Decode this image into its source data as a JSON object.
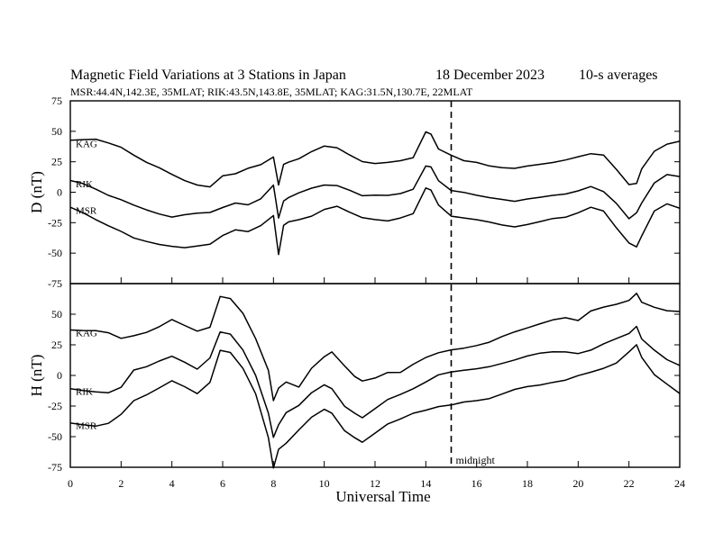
{
  "chart_data": {
    "type": "line",
    "title_left": "Magnetic Field Variations at 3 Stations in Japan",
    "title_date": "18 December",
    "title_year": "2023",
    "title_right": "10-s averages",
    "subtitle": "MSR:44.4N,142.3E, 35MLAT;  RIK:43.5N,143.8E, 35MLAT;  KAG:31.5N,130.7E, 22MLAT",
    "xlabel": "Universal Time",
    "xlim": [
      0,
      24
    ],
    "x_ticks": [
      "0",
      "2",
      "4",
      "6",
      "8",
      "10",
      "12",
      "14",
      "16",
      "18",
      "20",
      "22",
      "24"
    ],
    "midnight": {
      "x": 15,
      "label": "midnight"
    },
    "panels": [
      {
        "ylabel": "D (nT)",
        "ylim": [
          -75,
          75
        ],
        "y_ticks": [
          "75",
          "50",
          "25",
          "0",
          "-25",
          "-50",
          "-75"
        ],
        "series": [
          {
            "name": "KAG",
            "x": [
              0,
              0.5,
              1,
              1.5,
              2,
              2.5,
              3,
              3.5,
              4,
              4.5,
              5,
              5.5,
              6,
              6.5,
              7,
              7.5,
              8,
              8.2,
              8.4,
              8.6,
              9,
              9.5,
              10,
              10.5,
              11,
              11.5,
              12,
              12.5,
              13,
              13.5,
              14,
              14.2,
              14.5,
              15,
              15.5,
              16,
              16.5,
              17,
              17.5,
              18,
              18.5,
              19,
              19.5,
              20,
              20.5,
              21,
              21.5,
              22,
              22.3,
              22.5,
              23,
              23.5,
              24
            ],
            "y": [
              43,
              44,
              44,
              40,
              36,
              30,
              25,
              21,
              15,
              9,
              5,
              4,
              14,
              16,
              20,
              22,
              28,
              5,
              22,
              24,
              28,
              33,
              37,
              36,
              31,
              26,
              24,
              24,
              25,
              28,
              50,
              48,
              36,
              30,
              25,
              24,
              22,
              21,
              20,
              21,
              22,
              24,
              27,
              30,
              32,
              30,
              18,
              6,
              8,
              20,
              34,
              39,
              41
            ]
          },
          {
            "name": "RIK",
            "x": [
              0,
              0.5,
              1,
              1.5,
              2,
              2.5,
              3,
              3.5,
              4,
              4.5,
              5,
              5.5,
              6,
              6.5,
              7,
              7.5,
              8,
              8.2,
              8.4,
              8.6,
              9,
              9.5,
              10,
              10.5,
              11,
              11.5,
              12,
              12.5,
              13,
              13.5,
              14,
              14.2,
              14.5,
              15,
              15.5,
              16,
              16.5,
              17,
              17.5,
              18,
              18.5,
              19,
              19.5,
              20,
              20.5,
              21,
              21.5,
              22,
              22.3,
              22.5,
              23,
              23.5,
              24
            ],
            "y": [
              10,
              8,
              3,
              -3,
              -7,
              -11,
              -14,
              -17,
              -20,
              -19,
              -18,
              -17,
              -12,
              -8,
              -10,
              -6,
              5,
              -22,
              -8,
              -5,
              0,
              3,
              5,
              5,
              2,
              -2,
              -2,
              -3,
              -2,
              2,
              22,
              21,
              10,
              1,
              -1,
              -3,
              -4,
              -5,
              -7,
              -6,
              -5,
              -3,
              -1,
              2,
              5,
              0,
              -10,
              -22,
              -16,
              -8,
              8,
              14,
              12
            ]
          },
          {
            "name": "MSR",
            "x": [
              0,
              0.5,
              1,
              1.5,
              2,
              2.5,
              3,
              3.5,
              4,
              4.5,
              5,
              5.5,
              6,
              6.5,
              7,
              7.5,
              8,
              8.2,
              8.4,
              8.6,
              9,
              9.5,
              10,
              10.5,
              11,
              11.5,
              12,
              12.5,
              13,
              13.5,
              14,
              14.2,
              14.5,
              15,
              15.5,
              16,
              16.5,
              17,
              17.5,
              18,
              18.5,
              19,
              19.5,
              20,
              20.5,
              21,
              21.5,
              22,
              22.3,
              22.5,
              23,
              23.5,
              24
            ],
            "y": [
              -12,
              -16,
              -22,
              -28,
              -33,
              -38,
              -40,
              -42,
              -44,
              -46,
              -45,
              -43,
              -35,
              -30,
              -32,
              -28,
              -20,
              -52,
              -28,
              -25,
              -22,
              -20,
              -15,
              -12,
              -16,
              -20,
              -22,
              -24,
              -22,
              -18,
              4,
              2,
              -10,
              -20,
              -22,
              -23,
              -24,
              -26,
              -28,
              -27,
              -25,
              -22,
              -20,
              -16,
              -12,
              -16,
              -30,
              -42,
              -44,
              -35,
              -15,
              -10,
              -14
            ]
          }
        ]
      },
      {
        "ylabel": "H (nT)",
        "ylim": [
          -75,
          75
        ],
        "y_ticks": [
          "75",
          "50",
          "25",
          "0",
          "-25",
          "-50",
          "-75"
        ],
        "series": [
          {
            "name": "KAG",
            "x": [
              0,
              0.5,
              1,
              1.5,
              2,
              2.5,
              3,
              3.5,
              4,
              4.5,
              5,
              5.5,
              5.9,
              6.3,
              6.8,
              7.3,
              7.8,
              8,
              8.2,
              8.5,
              9,
              9.5,
              10,
              10.3,
              10.8,
              11.2,
              11.5,
              12,
              12.5,
              13,
              13.5,
              14,
              14.5,
              15,
              15.5,
              16,
              16.5,
              17,
              17.5,
              18,
              18.5,
              19,
              19.5,
              20,
              20.5,
              21,
              21.5,
              22,
              22.3,
              22.5,
              23,
              23.5,
              24
            ],
            "y": [
              38,
              37,
              36,
              34,
              30,
              33,
              36,
              40,
              45,
              40,
              36,
              40,
              64,
              62,
              50,
              30,
              5,
              -20,
              -10,
              -5,
              -10,
              5,
              15,
              20,
              8,
              0,
              -5,
              -3,
              2,
              3,
              10,
              15,
              18,
              20,
              22,
              25,
              28,
              32,
              35,
              38,
              42,
              46,
              48,
              45,
              52,
              55,
              58,
              62,
              67,
              60,
              55,
              52,
              52
            ]
          },
          {
            "name": "RIK",
            "x": [
              0,
              0.5,
              1,
              1.5,
              2,
              2.5,
              3,
              3.5,
              4,
              4.5,
              5,
              5.5,
              5.9,
              6.3,
              6.8,
              7.3,
              7.8,
              8,
              8.2,
              8.5,
              9,
              9.5,
              10,
              10.3,
              10.8,
              11.2,
              11.5,
              12,
              12.5,
              13,
              13.5,
              14,
              14.5,
              15,
              15.5,
              16,
              16.5,
              17,
              17.5,
              18,
              18.5,
              19,
              19.5,
              20,
              20.5,
              21,
              21.5,
              22,
              22.3,
              22.5,
              23,
              23.5,
              24
            ],
            "y": [
              -10,
              -12,
              -14,
              -15,
              -10,
              5,
              8,
              12,
              15,
              10,
              5,
              15,
              35,
              33,
              20,
              0,
              -30,
              -50,
              -40,
              -30,
              -25,
              -15,
              -8,
              -10,
              -25,
              -30,
              -35,
              -28,
              -20,
              -15,
              -10,
              -5,
              0,
              2,
              4,
              6,
              8,
              10,
              12,
              15,
              18,
              20,
              20,
              18,
              20,
              25,
              30,
              35,
              40,
              30,
              20,
              12,
              8
            ]
          },
          {
            "name": "MSR",
            "x": [
              0,
              0.5,
              1,
              1.5,
              2,
              2.5,
              3,
              3.5,
              4,
              4.5,
              5,
              5.5,
              5.9,
              6.3,
              6.8,
              7.3,
              7.8,
              8,
              8.2,
              8.5,
              9,
              9.5,
              10,
              10.3,
              10.8,
              11.2,
              11.5,
              12,
              12.5,
              13,
              13.5,
              14,
              14.5,
              15,
              15.5,
              16,
              16.5,
              17,
              17.5,
              18,
              18.5,
              19,
              19.5,
              20,
              20.5,
              21,
              21.5,
              22,
              22.3,
              22.5,
              23,
              23.5,
              24
            ],
            "y": [
              -38,
              -40,
              -42,
              -40,
              -32,
              -20,
              -15,
              -10,
              -5,
              -10,
              -15,
              -5,
              20,
              18,
              5,
              -15,
              -50,
              -75,
              -60,
              -55,
              -45,
              -35,
              -28,
              -30,
              -45,
              -50,
              -55,
              -48,
              -40,
              -35,
              -30,
              -28,
              -26,
              -25,
              -22,
              -20,
              -18,
              -15,
              -12,
              -10,
              -8,
              -5,
              -3,
              0,
              2,
              5,
              10,
              20,
              25,
              15,
              0,
              -8,
              -15
            ]
          }
        ]
      }
    ]
  }
}
